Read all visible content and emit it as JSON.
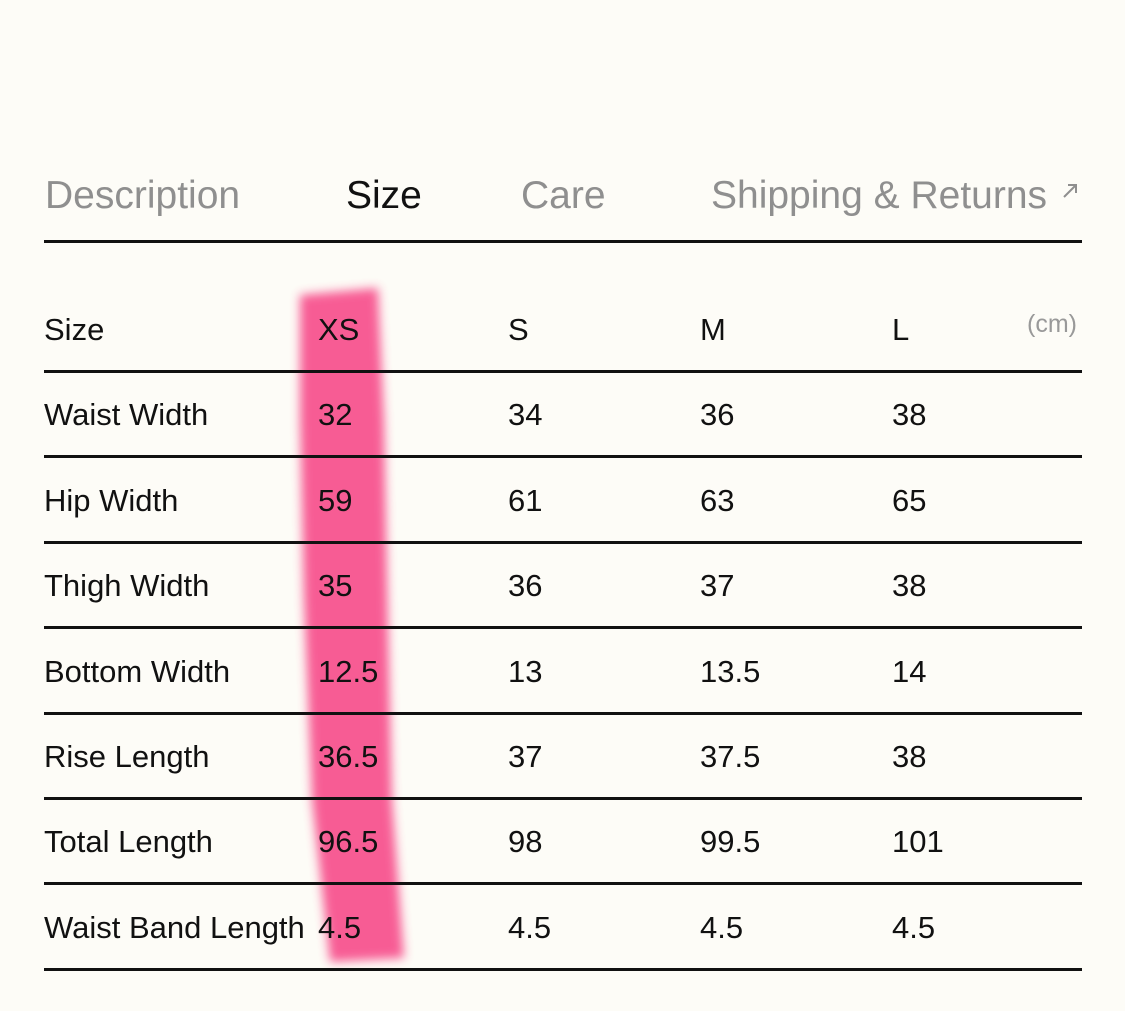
{
  "tabs": [
    "Description",
    "Size",
    "Care",
    "Shipping & Returns"
  ],
  "active_tab": 1,
  "table": {
    "header": [
      "Size",
      "XS",
      "S",
      "M",
      "L"
    ],
    "unit": "(cm)",
    "rows": [
      [
        "Waist Width",
        32,
        34,
        36,
        38
      ],
      [
        "Hip Width",
        59,
        61,
        63,
        65
      ],
      [
        "Thigh Width",
        35,
        36,
        37,
        38
      ],
      [
        "Bottom Width",
        12.5,
        13,
        13.5,
        14
      ],
      [
        "Rise Length",
        36.5,
        37,
        37.5,
        38
      ],
      [
        "Total Length",
        96.5,
        98,
        99.5,
        101
      ],
      [
        "Waist Band Length",
        4.5,
        4.5,
        4.5,
        4.5
      ]
    ]
  }
}
